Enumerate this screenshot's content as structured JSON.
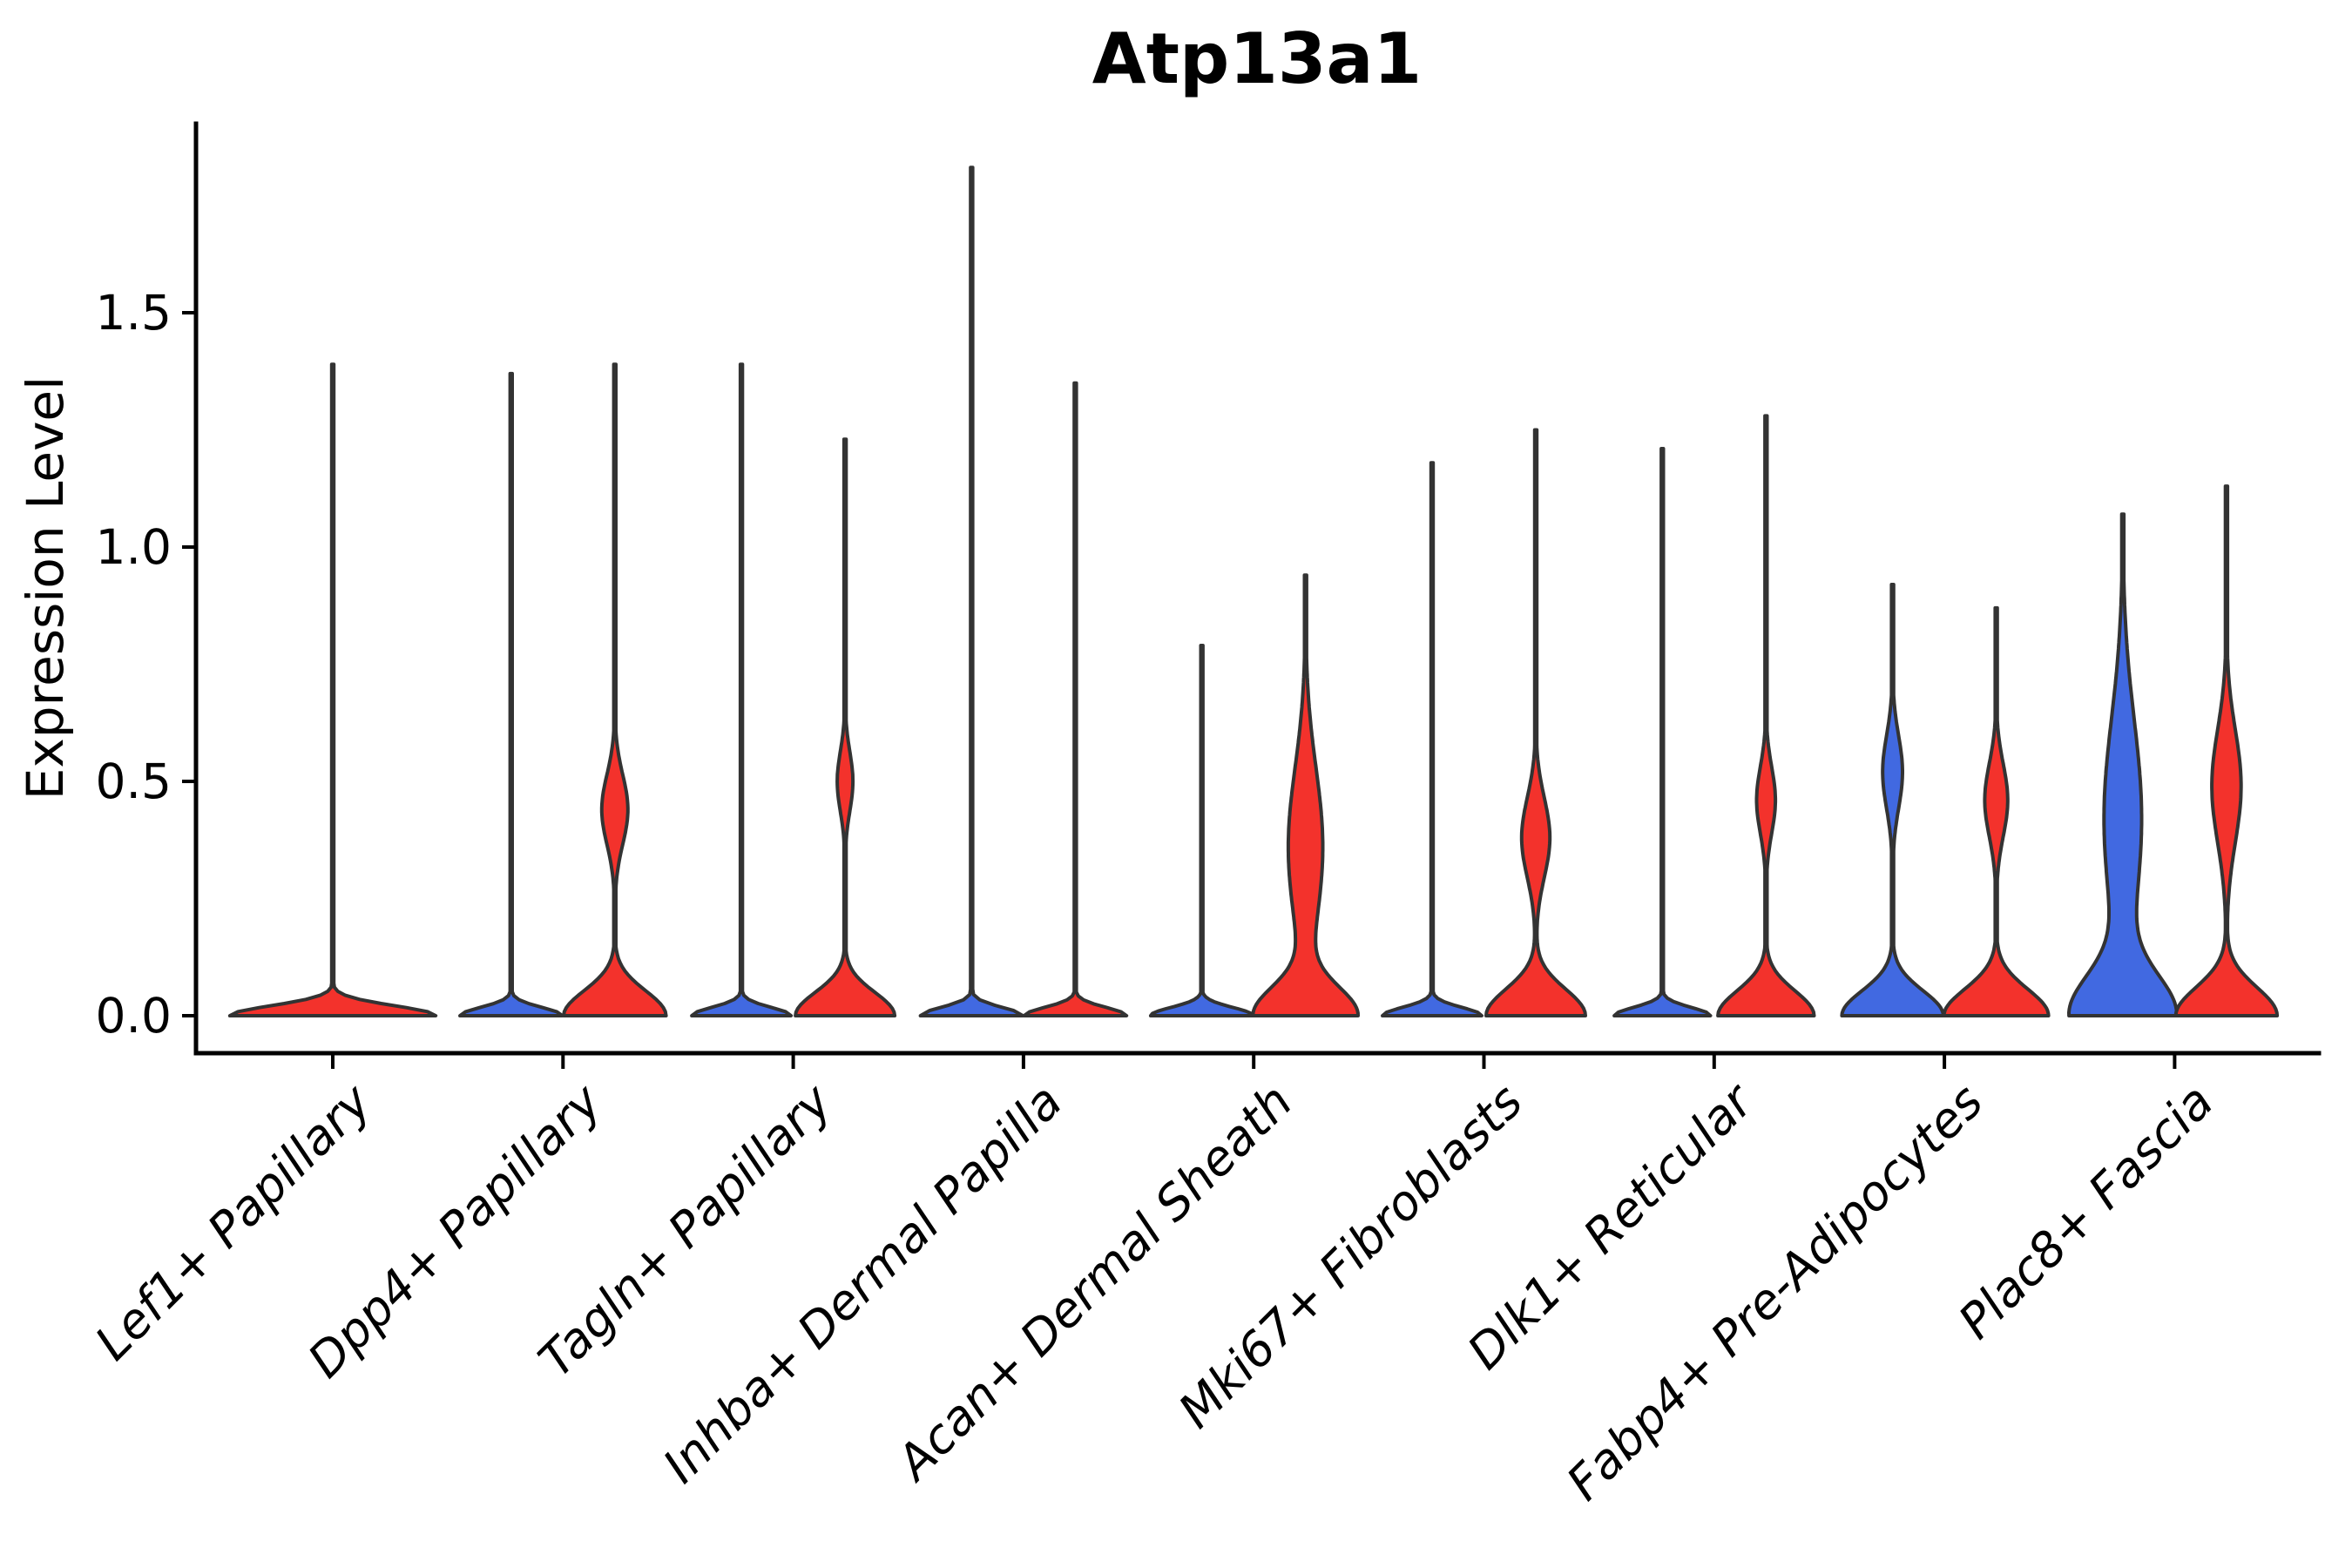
{
  "figure": {
    "background": "#ffffff"
  },
  "chart_data": {
    "type": "violin",
    "title": "Atp13a1",
    "ylabel": "Expression Level",
    "xlabel": "",
    "grid": false,
    "legend": "none",
    "ytick_labels": [
      "0.0",
      "0.5",
      "1.0",
      "1.5"
    ],
    "ytick_values": [
      0.0,
      0.5,
      1.0,
      1.5
    ],
    "ylim": [
      -0.08,
      1.9
    ],
    "colors": {
      "blue": "#4169e1",
      "red": "#f3322c",
      "outline": "#333333",
      "axis": "#000000",
      "background": "#ffffff"
    },
    "categories": [
      "Lef1+ Papillary",
      "Dpp4+ Papillary",
      "Tagln+ Papillary",
      "Inhba+ Dermal Papilla",
      "Acan+ Dermal Sheath",
      "Mki67+ Fibroblasts",
      "Dlk1+ Reticular",
      "Fabp4+ Pre-Adipocytes",
      "Plac8+ Fascia"
    ],
    "violins": [
      {
        "category": "Lef1+ Papillary",
        "side": "center",
        "color": "red",
        "max_expr": 1.39,
        "base_hw": 1.97,
        "base_sigma": 0.03,
        "bulge": null
      },
      {
        "category": "Dpp4+ Papillary",
        "side": "left",
        "color": "blue",
        "max_expr": 1.37,
        "base_hw": 0.98,
        "base_sigma": 0.025,
        "bulge": null
      },
      {
        "category": "Dpp4+ Papillary",
        "side": "right",
        "color": "red",
        "max_expr": 1.39,
        "base_hw": 0.98,
        "base_sigma": 0.075,
        "bulge": {
          "center": 0.44,
          "sigma": 0.105,
          "hw": 0.25
        }
      },
      {
        "category": "Tagln+ Papillary",
        "side": "left",
        "color": "blue",
        "max_expr": 1.39,
        "base_hw": 0.95,
        "base_sigma": 0.025,
        "bulge": null
      },
      {
        "category": "Tagln+ Papillary",
        "side": "right",
        "color": "red",
        "max_expr": 1.23,
        "base_hw": 0.95,
        "base_sigma": 0.07,
        "bulge": {
          "center": 0.5,
          "sigma": 0.09,
          "hw": 0.15
        }
      },
      {
        "category": "Inhba+ Dermal Papilla",
        "side": "left",
        "color": "blue",
        "max_expr": 1.81,
        "base_hw": 0.98,
        "base_sigma": 0.025,
        "bulge": null
      },
      {
        "category": "Inhba+ Dermal Papilla",
        "side": "right",
        "color": "red",
        "max_expr": 1.35,
        "base_hw": 0.98,
        "base_sigma": 0.025,
        "bulge": null
      },
      {
        "category": "Acan+ Dermal Sheath",
        "side": "left",
        "color": "blue",
        "max_expr": 0.79,
        "base_hw": 0.98,
        "base_sigma": 0.025,
        "bulge": null
      },
      {
        "category": "Acan+ Dermal Sheath",
        "side": "right",
        "color": "red",
        "max_expr": 0.94,
        "base_hw": 0.97,
        "base_sigma": 0.085,
        "bulge": {
          "center": 0.36,
          "sigma": 0.24,
          "hw": 0.33
        }
      },
      {
        "category": "Mki67+ Fibroblasts",
        "side": "left",
        "color": "blue",
        "max_expr": 1.18,
        "base_hw": 0.95,
        "base_sigma": 0.025,
        "bulge": null
      },
      {
        "category": "Mki67+ Fibroblasts",
        "side": "right",
        "color": "red",
        "max_expr": 1.25,
        "base_hw": 0.95,
        "base_sigma": 0.08,
        "bulge": {
          "center": 0.38,
          "sigma": 0.12,
          "hw": 0.27
        }
      },
      {
        "category": "Dlk1+ Reticular",
        "side": "left",
        "color": "blue",
        "max_expr": 1.21,
        "base_hw": 0.92,
        "base_sigma": 0.025,
        "bulge": null
      },
      {
        "category": "Dlk1+ Reticular",
        "side": "right",
        "color": "red",
        "max_expr": 1.28,
        "base_hw": 0.92,
        "base_sigma": 0.075,
        "bulge": {
          "center": 0.46,
          "sigma": 0.1,
          "hw": 0.18
        }
      },
      {
        "category": "Fabp4+ Pre-Adipocytes",
        "side": "left",
        "color": "blue",
        "max_expr": 0.92,
        "base_hw": 0.97,
        "base_sigma": 0.075,
        "bulge": {
          "center": 0.52,
          "sigma": 0.11,
          "hw": 0.19
        }
      },
      {
        "category": "Fabp4+ Pre-Adipocytes",
        "side": "right",
        "color": "red",
        "max_expr": 0.87,
        "base_hw": 1.0,
        "base_sigma": 0.08,
        "bulge": {
          "center": 0.46,
          "sigma": 0.11,
          "hw": 0.22
        }
      },
      {
        "category": "Plac8+ Fascia",
        "side": "left",
        "color": "blue",
        "max_expr": 1.07,
        "base_hw": 0.98,
        "base_sigma": 0.12,
        "bulge": {
          "center": 0.42,
          "sigma": 0.3,
          "hw": 0.36
        }
      },
      {
        "category": "Plac8+ Fascia",
        "side": "right",
        "color": "red",
        "max_expr": 1.13,
        "base_hw": 0.97,
        "base_sigma": 0.085,
        "bulge": {
          "center": 0.49,
          "sigma": 0.17,
          "hw": 0.28
        }
      }
    ]
  }
}
